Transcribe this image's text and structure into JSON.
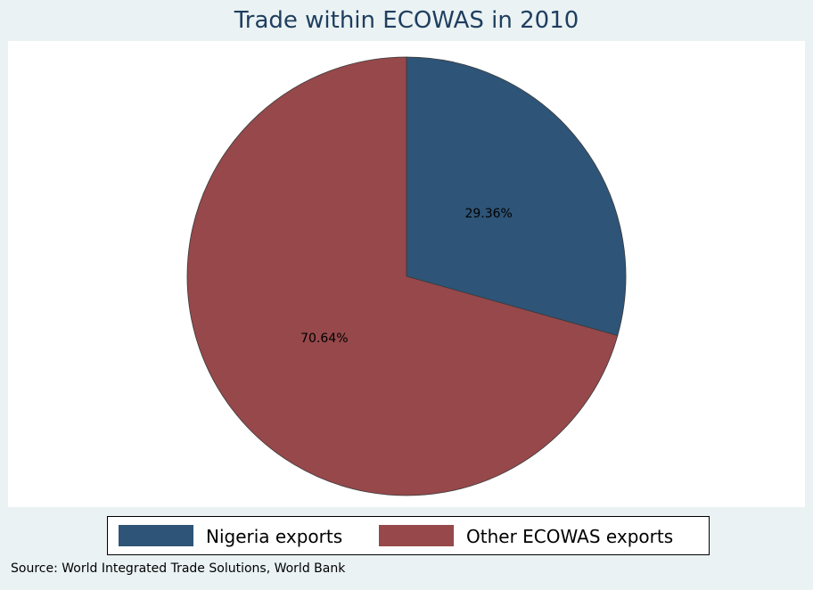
{
  "chart_data": {
    "type": "pie",
    "title": "Trade within ECOWAS in 2010",
    "slices": [
      {
        "label": "Nigeria exports",
        "value": 29.36,
        "display": "29.36%",
        "color": "#2e5477"
      },
      {
        "label": "Other ECOWAS exports",
        "value": 70.64,
        "display": "70.64%",
        "color": "#96484b"
      }
    ],
    "legend_position": "bottom",
    "note": "Source: World Integrated Trade Solutions, World Bank"
  }
}
